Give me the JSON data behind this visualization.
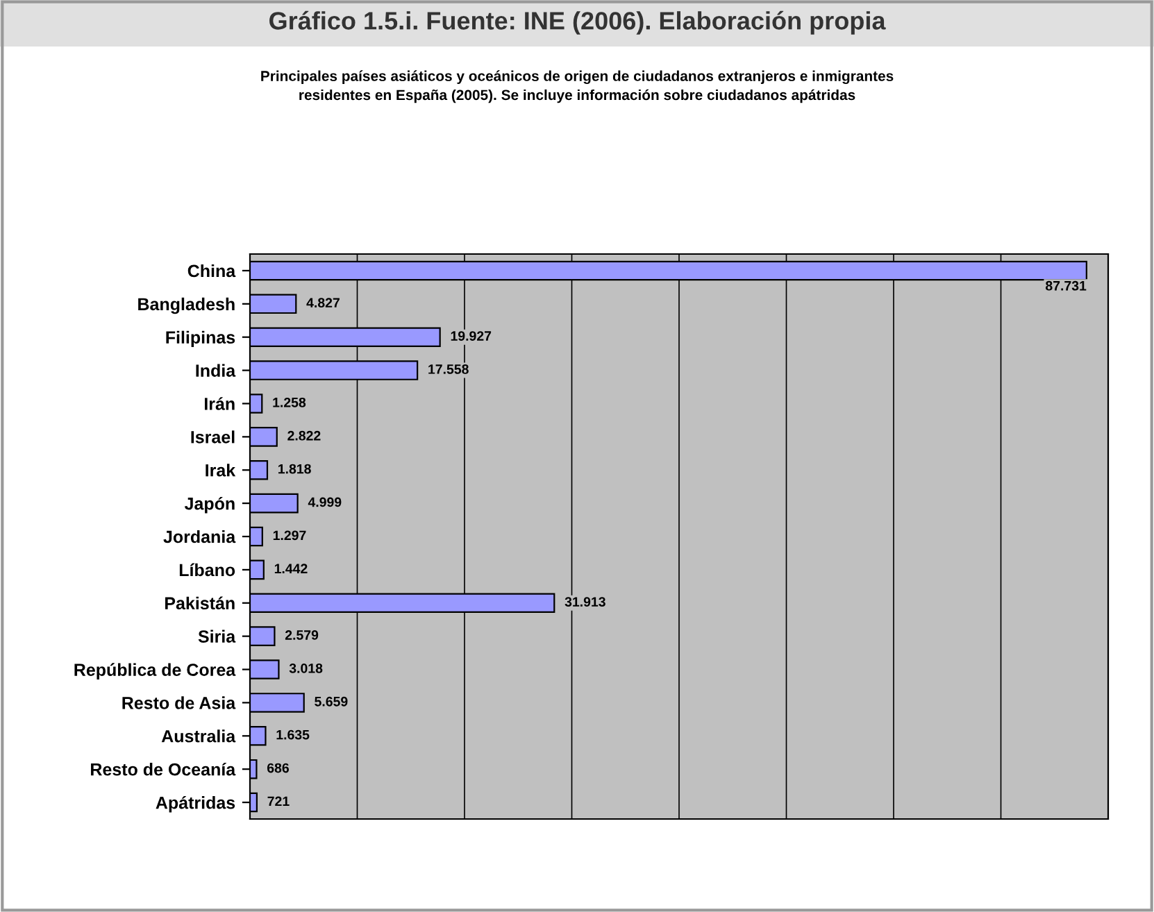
{
  "chart_data": {
    "type": "bar",
    "orientation": "horizontal",
    "title": "Gráfico 1.5.i. Fuente: INE (2006). Elaboración propia",
    "subtitle": "Principales países asiáticos y oceánicos de origen de ciudadanos extranjeros e inmigrantes\nresidentes en España (2005). Se incluye información sobre ciudadanos apátridas",
    "categories": [
      "China",
      "Bangladesh",
      "Filipinas",
      "India",
      "Irán",
      "Israel",
      "Irak",
      "Japón",
      "Jordania",
      "Líbano",
      "Pakistán",
      "Siria",
      "República de Corea",
      "Resto de Asia",
      "Australia",
      "Resto de Oceanía",
      "Apátridas"
    ],
    "values": [
      87731,
      4827,
      19927,
      17558,
      1258,
      2822,
      1818,
      4999,
      1297,
      1442,
      31913,
      2579,
      3018,
      5659,
      1635,
      686,
      721
    ],
    "value_labels": [
      "87.731",
      "4.827",
      "19.927",
      "17.558",
      "1.258",
      "2.822",
      "1.818",
      "4.999",
      "1.297",
      "1.442",
      "31.913",
      "2.579",
      "3.018",
      "5.659",
      "1.635",
      "686",
      "721"
    ],
    "color": "#9999ff",
    "xlim": [
      0,
      90000
    ],
    "xticks": [
      {
        "value": 0,
        "label": null
      },
      {
        "value": 11250,
        "label": null
      },
      {
        "value": 22500,
        "label": null
      },
      {
        "value": 33750,
        "label": null
      },
      {
        "value": 45000,
        "label": null
      },
      {
        "value": 56250,
        "label": null
      },
      {
        "value": 67500,
        "label": null
      },
      {
        "value": 78750,
        "label": null
      },
      {
        "value": 90000,
        "label": null
      }
    ],
    "grid": "x",
    "tick_labels": "y"
  }
}
